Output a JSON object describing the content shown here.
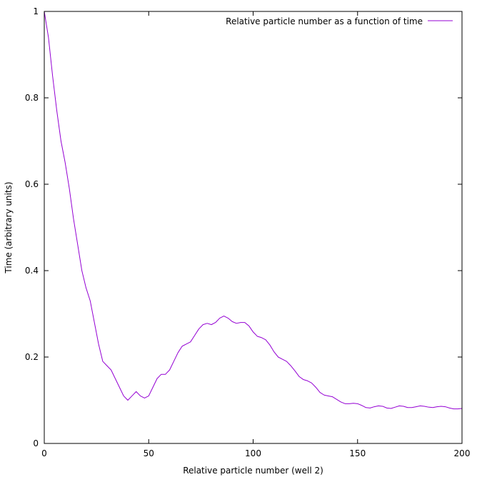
{
  "chart_data": {
    "type": "line",
    "title": "",
    "xlabel": "Relative particle number (well 2)",
    "ylabel": "Time (arbitrary units)",
    "xlim": [
      0,
      200
    ],
    "ylim": [
      0,
      1
    ],
    "x_ticks": [
      0,
      50,
      100,
      150,
      200
    ],
    "y_ticks": [
      0,
      0.2,
      0.4,
      0.6,
      0.8,
      1
    ],
    "x_tick_labels": [
      "0",
      "50",
      "100",
      "150",
      "200"
    ],
    "y_tick_labels": [
      "0",
      "0.2",
      "0.4",
      "0.6",
      "0.8",
      "1"
    ],
    "grid": false,
    "legend_position": "top-right",
    "series": [
      {
        "name": "Relative particle number as a function of time",
        "color": "#9400d3",
        "x": [
          0,
          2,
          4,
          6,
          8,
          10,
          12,
          14,
          16,
          18,
          20,
          22,
          24,
          26,
          28,
          30,
          32,
          34,
          36,
          38,
          40,
          42,
          44,
          46,
          48,
          50,
          52,
          54,
          56,
          58,
          60,
          62,
          64,
          66,
          68,
          70,
          72,
          74,
          76,
          78,
          80,
          82,
          84,
          86,
          88,
          90,
          92,
          94,
          96,
          98,
          100,
          102,
          104,
          106,
          108,
          110,
          112,
          114,
          116,
          118,
          120,
          122,
          124,
          126,
          128,
          130,
          132,
          134,
          136,
          138,
          140,
          142,
          144,
          146,
          148,
          150,
          152,
          154,
          156,
          158,
          160,
          162,
          164,
          166,
          168,
          170,
          172,
          174,
          176,
          178,
          180,
          182,
          184,
          186,
          188,
          190,
          192,
          194,
          196,
          198,
          200
        ],
        "y": [
          1.0,
          0.94,
          0.85,
          0.77,
          0.7,
          0.65,
          0.59,
          0.52,
          0.46,
          0.4,
          0.36,
          0.33,
          0.28,
          0.23,
          0.19,
          0.18,
          0.17,
          0.15,
          0.13,
          0.11,
          0.1,
          0.11,
          0.12,
          0.11,
          0.105,
          0.11,
          0.13,
          0.15,
          0.16,
          0.16,
          0.17,
          0.19,
          0.21,
          0.225,
          0.23,
          0.235,
          0.25,
          0.265,
          0.275,
          0.278,
          0.275,
          0.28,
          0.29,
          0.295,
          0.29,
          0.282,
          0.278,
          0.28,
          0.28,
          0.272,
          0.258,
          0.248,
          0.245,
          0.24,
          0.228,
          0.212,
          0.2,
          0.195,
          0.19,
          0.18,
          0.168,
          0.155,
          0.148,
          0.145,
          0.14,
          0.13,
          0.118,
          0.112,
          0.11,
          0.108,
          0.102,
          0.096,
          0.092,
          0.092,
          0.093,
          0.092,
          0.088,
          0.083,
          0.082,
          0.085,
          0.087,
          0.086,
          0.082,
          0.081,
          0.084,
          0.087,
          0.086,
          0.083,
          0.083,
          0.085,
          0.087,
          0.086,
          0.084,
          0.083,
          0.085,
          0.086,
          0.085,
          0.082,
          0.08,
          0.08,
          0.081
        ]
      }
    ]
  }
}
